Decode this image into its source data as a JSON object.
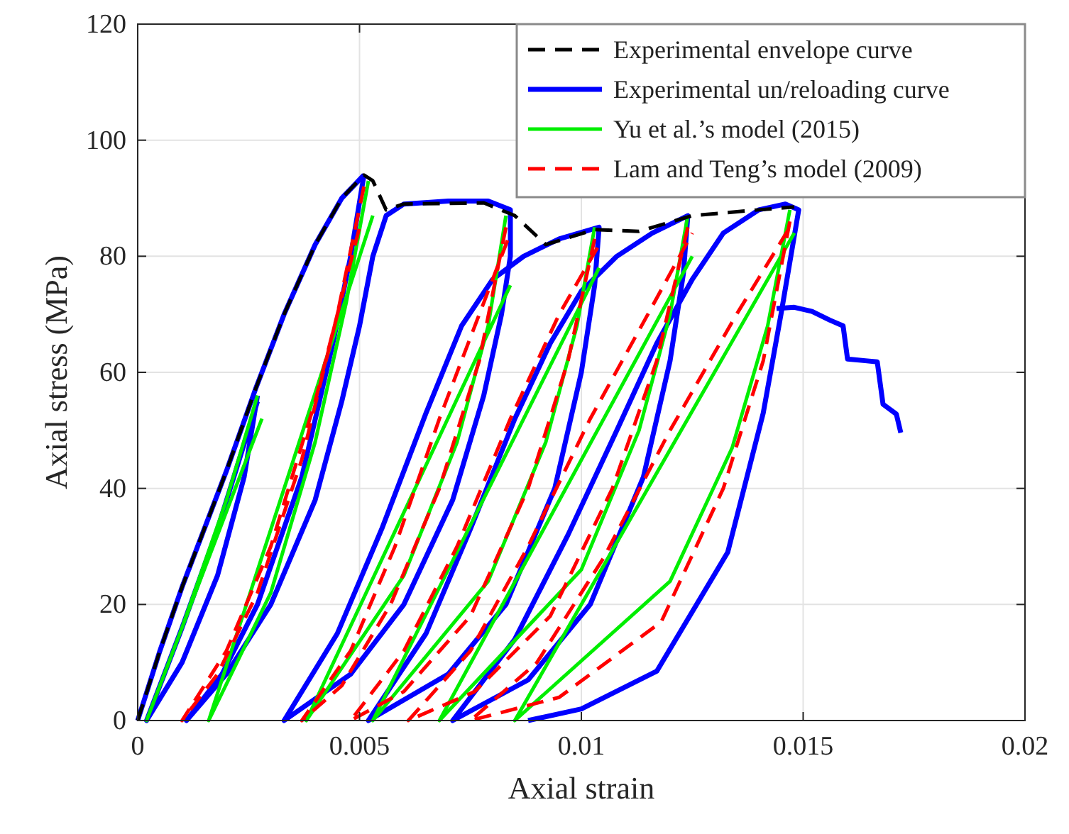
{
  "chart_data": {
    "type": "line",
    "xlabel": "Axial strain",
    "ylabel": "Axial stress (MPa)",
    "xlim": [
      0,
      0.02
    ],
    "ylim": [
      0,
      120
    ],
    "xticks": [
      0,
      0.005,
      0.01,
      0.015,
      0.02
    ],
    "yticks": [
      0,
      20,
      40,
      60,
      80,
      100,
      120
    ],
    "grid": true,
    "legend": "top right",
    "series": [
      {
        "name": "Experimental envelope curve",
        "color": "#000000",
        "line_style": "dashed",
        "x": [
          0,
          0.0005,
          0.001,
          0.002,
          0.00265,
          0.0033,
          0.004,
          0.0046,
          0.0051,
          0.0053,
          0.0056,
          0.006,
          0.0078,
          0.0085,
          0.0092,
          0.0103,
          0.0113,
          0.0125,
          0.014,
          0.0148
        ],
        "values": [
          0,
          12,
          23,
          43,
          57,
          70,
          82,
          90,
          94,
          93,
          88,
          89,
          89.2,
          87,
          82,
          84.6,
          84.3,
          87,
          88,
          88.5
        ]
      },
      {
        "name": "Experimental un/reloading curve",
        "color": "#0000ff",
        "line_style": "solid",
        "x": [
          0,
          0.0005,
          0.001,
          0.002,
          0.00265,
          0.0033,
          0.004,
          0.0046,
          0.0051
        ],
        "values": [
          0,
          12,
          23,
          43,
          57,
          70,
          82,
          90,
          94
        ]
      },
      {
        "color": "#0000ff",
        "line_style": "solid",
        "x": [
          0.0027,
          0.0024,
          0.0018,
          0.001,
          0.0002,
          0.001,
          0.0018,
          0.0027
        ],
        "values": [
          56,
          42,
          25,
          10,
          0,
          16,
          33,
          55
        ]
      },
      {
        "color": "#0000ff",
        "line_style": "solid",
        "x": [
          0.0051,
          0.0048,
          0.0044,
          0.0037,
          0.0027,
          0.0019,
          0.0011,
          0.002,
          0.003,
          0.004,
          0.0046,
          0.005,
          0.0053,
          0.0056,
          0.006,
          0.007,
          0.0079,
          0.0084,
          0.0084,
          0.0082,
          0.0078,
          0.0071,
          0.006,
          0.0048,
          0.0033,
          0.0045,
          0.0055,
          0.0065,
          0.0073,
          0.008,
          0.0087,
          0.0095,
          0.0104,
          0.0103,
          0.01,
          0.0094,
          0.0083,
          0.007,
          0.0052,
          0.0065,
          0.0075,
          0.0085,
          0.0093,
          0.01,
          0.0108,
          0.0116,
          0.0124,
          0.0123,
          0.012,
          0.0114,
          0.0102,
          0.0088,
          0.0071,
          0.0085,
          0.0097,
          0.0108,
          0.0117,
          0.0125,
          0.0132,
          0.014,
          0.0146,
          0.0149,
          0.0149,
          0.0145,
          0.0141,
          0.0133,
          0.0117,
          0.01,
          0.0088
        ],
        "values": [
          94,
          80,
          65,
          42,
          20,
          8,
          0,
          8,
          20,
          38,
          55,
          68,
          80,
          87,
          89,
          89.5,
          89.5,
          88,
          80,
          70,
          56,
          38,
          20,
          8,
          0,
          15,
          33,
          53,
          68,
          76,
          80,
          83,
          85,
          75,
          60,
          40,
          20,
          8,
          0,
          15,
          33,
          52,
          65,
          74,
          80,
          84,
          87,
          77,
          62,
          42,
          20,
          7,
          0,
          14,
          32,
          50,
          65,
          76,
          84,
          88,
          89,
          88,
          88,
          70,
          53,
          29,
          8.5,
          2,
          0
        ]
      },
      {
        "color": "#0000ff",
        "line_style": "solid",
        "x": [
          0.0144,
          0.0148,
          0.0152,
          0.0156,
          0.0159,
          0.016,
          0.0164,
          0.01667,
          0.0168,
          0.0171,
          0.0172
        ],
        "values": [
          71,
          71.2,
          70.5,
          69,
          68,
          62.3,
          62,
          61.8,
          54.5,
          52.8,
          49.6
        ]
      },
      {
        "name": "Yu et al.’s model (2015)",
        "color": "#00ee00",
        "line_style": "solid",
        "x": [
          0.0027,
          0.002,
          0.001,
          0.0002,
          0.0028
        ],
        "values": [
          56,
          38,
          16,
          0,
          52
        ]
      },
      {
        "color": "#00ee00",
        "line_style": "solid",
        "x": [
          0.0052,
          0.0047,
          0.004,
          0.003,
          0.0016,
          0.0053
        ],
        "values": [
          93,
          72,
          48,
          22,
          0,
          87
        ]
      },
      {
        "color": "#00ee00",
        "line_style": "solid",
        "x": [
          0.0083,
          0.0079,
          0.0072,
          0.006,
          0.0038,
          0.0084
        ],
        "values": [
          87,
          68,
          48,
          25,
          0,
          75
        ]
      },
      {
        "color": "#00ee00",
        "line_style": "solid",
        "x": [
          0.0103,
          0.0099,
          0.0092,
          0.0079,
          0.0053,
          0.0104
        ],
        "values": [
          85,
          68,
          48,
          24,
          0,
          78
        ]
      },
      {
        "color": "#00ee00",
        "line_style": "solid",
        "x": [
          0.0124,
          0.012,
          0.0113,
          0.01,
          0.0068,
          0.0125
        ],
        "values": [
          87,
          70,
          50,
          26,
          0,
          80
        ]
      },
      {
        "color": "#00ee00",
        "line_style": "solid",
        "x": [
          0.0147,
          0.0142,
          0.0134,
          0.012,
          0.0085,
          0.0148
        ],
        "values": [
          88,
          68,
          47,
          24,
          0,
          84
        ]
      },
      {
        "name": "Lam and Teng’s model (2009)",
        "color": "#ff0000",
        "line_style": "dashed",
        "x": [
          0.0051,
          0.0045,
          0.0037,
          0.0027,
          0.0018,
          0.001,
          0.002,
          0.003,
          0.004,
          0.005
        ],
        "values": [
          92,
          70,
          45,
          22,
          8,
          0,
          12,
          30,
          55,
          85
        ]
      },
      {
        "color": "#ff0000",
        "line_style": "dashed",
        "x": [
          0.0083,
          0.0077,
          0.0068,
          0.0057,
          0.0046,
          0.0037,
          0.0048,
          0.0058,
          0.0068,
          0.0078,
          0.0084
        ],
        "values": [
          85,
          62,
          40,
          20,
          6,
          0,
          12,
          30,
          52,
          72,
          84
        ]
      },
      {
        "color": "#ff0000",
        "line_style": "dashed",
        "x": [
          0.0103,
          0.0097,
          0.0088,
          0.0075,
          0.006,
          0.0048,
          0.006,
          0.0072,
          0.0084,
          0.0095,
          0.0104
        ],
        "values": [
          83,
          62,
          40,
          18,
          5,
          0,
          12,
          30,
          52,
          70,
          82
        ]
      },
      {
        "color": "#ff0000",
        "line_style": "dashed",
        "x": [
          0.0124,
          0.0117,
          0.0107,
          0.0093,
          0.0076,
          0.0061,
          0.0075,
          0.0088,
          0.0102,
          0.0115,
          0.0125
        ],
        "values": [
          85,
          62,
          40,
          18,
          5,
          0,
          12,
          30,
          52,
          70,
          84
        ]
      },
      {
        "color": "#ff0000",
        "line_style": "dashed",
        "x": [
          0.0147,
          0.0141,
          0.0132,
          0.0118,
          0.0095,
          0.0075,
          0.009,
          0.0105,
          0.012,
          0.0135,
          0.0147
        ],
        "values": [
          86,
          62,
          40,
          17,
          4,
          0,
          10,
          28,
          50,
          70,
          85
        ]
      }
    ]
  }
}
